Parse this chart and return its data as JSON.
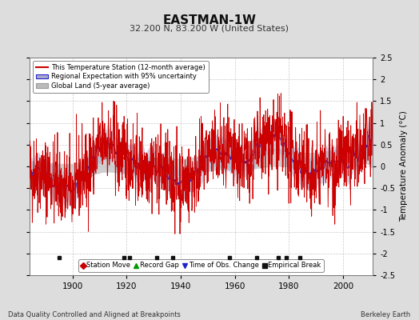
{
  "title": "EASTMAN-1W",
  "subtitle": "32.200 N, 83.200 W (United States)",
  "ylabel": "Temperature Anomaly (°C)",
  "xlabel_left": "Data Quality Controlled and Aligned at Breakpoints",
  "xlabel_right": "Berkeley Earth",
  "ylim": [
    -2.5,
    2.5
  ],
  "xlim": [
    1884,
    2011
  ],
  "xticks": [
    1900,
    1920,
    1940,
    1960,
    1980,
    2000
  ],
  "yticks": [
    -2.5,
    -2,
    -1.5,
    -1,
    -0.5,
    0,
    0.5,
    1,
    1.5,
    2,
    2.5
  ],
  "ytick_labels": [
    "-2.5",
    "-2",
    "-1.5",
    "-1",
    "-0.5",
    "0",
    "0.5",
    "1",
    "1.5",
    "2",
    "2.5"
  ],
  "bg_color": "#dddddd",
  "plot_bg_color": "#ffffff",
  "grid_color": "#bbbbbb",
  "red_color": "#cc0000",
  "blue_color": "#2222cc",
  "blue_fill_color": "#aaaacc",
  "gray_fill_color": "#bbbbbb",
  "legend_entries": [
    "This Temperature Station (12-month average)",
    "Regional Expectation with 95% uncertainty",
    "Global Land (5-year average)"
  ],
  "bottom_legend": [
    {
      "marker": "D",
      "color": "#cc0000",
      "label": "Station Move"
    },
    {
      "marker": "^",
      "color": "#009900",
      "label": "Record Gap"
    },
    {
      "marker": "v",
      "color": "#2222cc",
      "label": "Time of Obs. Change"
    },
    {
      "marker": "s",
      "color": "#111111",
      "label": "Empirical Break"
    }
  ],
  "empirical_breaks": [
    1895,
    1919,
    1921,
    1931,
    1937,
    1958,
    1968,
    1976,
    1979,
    1984
  ],
  "seed": 42
}
